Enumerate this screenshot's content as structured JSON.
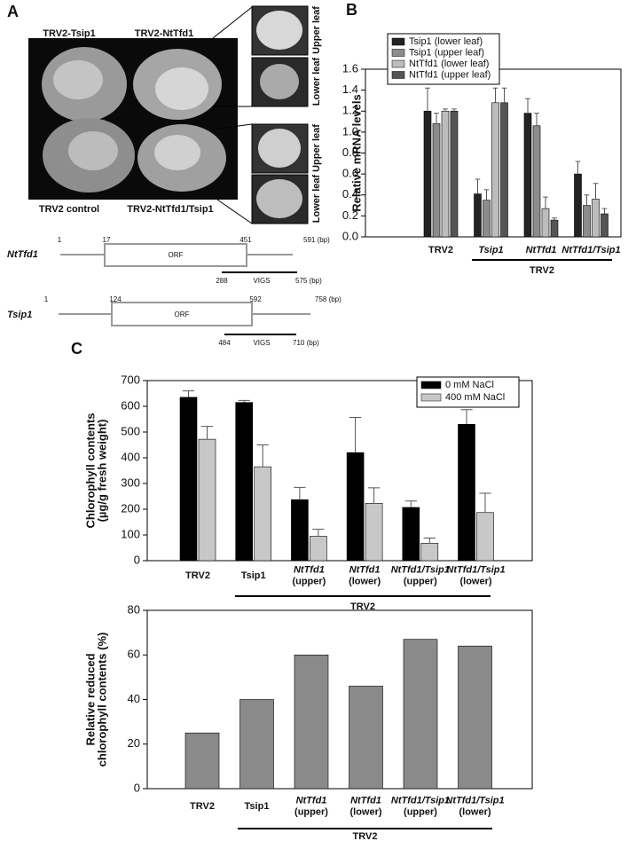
{
  "panel_labels": [
    "A",
    "B",
    "C"
  ],
  "panel_a": {
    "photo_labels": [
      "TRV2-Tsip1",
      "TRV2-NtTfd1",
      "TRV2 control",
      "TRV2-NtTfd1/Tsip1"
    ],
    "leaf_labels": [
      "Upper leaf",
      "Lower leaf",
      "Upper leaf",
      "Lower leaf"
    ],
    "genes": [
      {
        "name": "NtTfd1",
        "labels": [
          "1",
          "17",
          "451",
          "591 (bp)"
        ],
        "orf": "ORF",
        "vigs": "VIGS",
        "vigs_labels": [
          "288",
          "575 (bp)"
        ]
      },
      {
        "name": "Tsip1",
        "labels": [
          "1",
          "124",
          "592",
          "758 (bp)"
        ],
        "orf": "ORF",
        "vigs": "VIGS",
        "vigs_labels": [
          "484",
          "710 (bp)"
        ]
      }
    ]
  },
  "chart_data": [
    {
      "type": "bar",
      "y_label": "Relative mRNA levels",
      "categories": [
        "TRV2",
        "Tsip1",
        "NtTfd1",
        "NtTfd1/Tsip1"
      ],
      "series": [
        {
          "name": "Tsip1 (lower leaf)",
          "color": "#222222",
          "values": [
            1.2,
            0.41,
            1.18,
            0.6
          ],
          "errors": [
            0.22,
            0.14,
            0.14,
            0.12
          ]
        },
        {
          "name": "Tsip1 (upper leaf)",
          "color": "#8c8c8c",
          "values": [
            1.08,
            0.35,
            1.06,
            0.3
          ],
          "errors": [
            0.1,
            0.1,
            0.12,
            0.1
          ]
        },
        {
          "name": "NtTfd1 (lower leaf)",
          "color": "#bdbdbd",
          "values": [
            1.2,
            1.28,
            0.27,
            0.36
          ],
          "errors": [
            0.02,
            0.14,
            0.11,
            0.15
          ]
        },
        {
          "name": "NtTfd1 (upper leaf)",
          "color": "#555555",
          "values": [
            1.2,
            1.28,
            0.16,
            0.22
          ],
          "errors": [
            0.02,
            0.14,
            0.02,
            0.05
          ]
        }
      ],
      "group_label": "TRV2",
      "ylim": [
        0,
        1.6
      ],
      "yticks": [
        {
          "value": 0,
          "label": "0.0"
        },
        0.2,
        0.4,
        0.6,
        0.8,
        {
          "value": 1,
          "label": "1.0"
        },
        1.2,
        1.4,
        1.6
      ],
      "grid": false
    },
    {
      "type": "bar",
      "y_label": "Chlorophyll contents\n(µg/g fresh weight)",
      "categories": [
        "TRV2",
        "Tsip1",
        "NtTfd1\n(upper)",
        "NtTfd1\n(lower)",
        "NtTfd1/Tsip1\n(upper)",
        "NtTfd1/Tsip1\n(lower)"
      ],
      "series": [
        {
          "name": "0 mM NaCl",
          "color": "#000000",
          "values": [
            635,
            615,
            237,
            420,
            207,
            530
          ],
          "errors": [
            25,
            8,
            48,
            137,
            25,
            57
          ]
        },
        {
          "name": "400 mM NaCl",
          "color": "#c8c8c8",
          "values": [
            472,
            365,
            95,
            223,
            68,
            187
          ],
          "errors": [
            50,
            85,
            27,
            60,
            20,
            75
          ]
        }
      ],
      "group_label": "TRV2",
      "ylim": [
        0,
        700
      ],
      "yticks": [
        0,
        100,
        200,
        300,
        400,
        500,
        600,
        700
      ],
      "grid": false
    },
    {
      "type": "bar",
      "y_label": "Relative reduced\nchlorophyll contents (%)",
      "categories": [
        "TRV2",
        "Tsip1",
        "NtTfd1\n(upper)",
        "NtTfd1\n(lower)",
        "NtTfd1/Tsip1\n(upper)",
        "NtTfd1/Tsip1\n(lower)"
      ],
      "series": [
        {
          "color": "#8a8a8a",
          "values": [
            25,
            40,
            60,
            46,
            67,
            64
          ]
        }
      ],
      "group_label": "TRV2",
      "ylim": [
        0,
        80
      ],
      "yticks": [
        0,
        20,
        40,
        60,
        80
      ],
      "grid": false
    }
  ]
}
